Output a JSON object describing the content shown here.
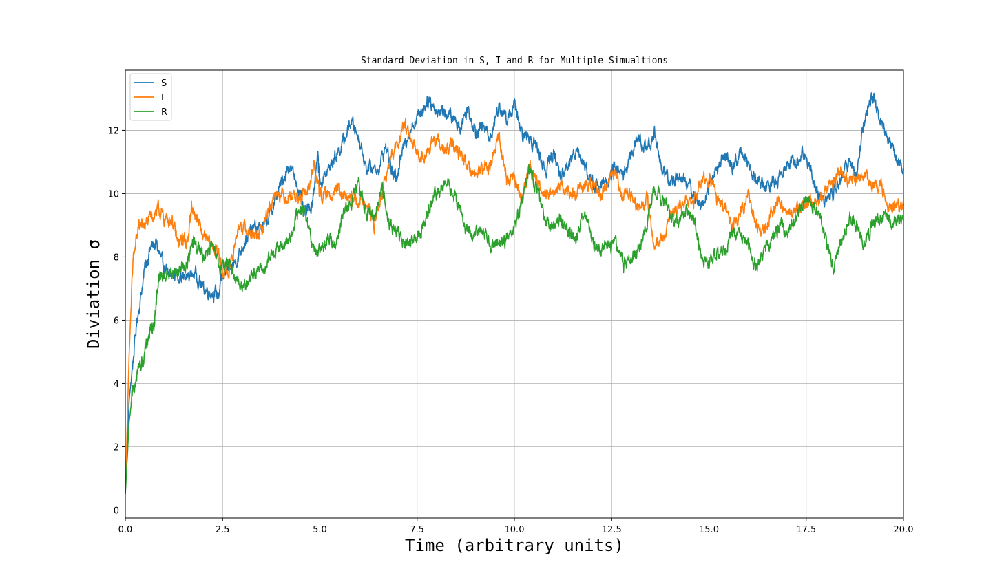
{
  "chart_data": {
    "type": "line",
    "title": "Standard Deviation in S, I and R for Multiple Simualtions",
    "xlabel": "Time (arbitrary units)",
    "ylabel": "Diviation σ",
    "xlim": [
      0,
      20
    ],
    "ylim": [
      -0.25,
      13.9
    ],
    "xticks": [
      0,
      2.5,
      5,
      7.5,
      10,
      12.5,
      15,
      17.5,
      20
    ],
    "xtick_labels": [
      "0.0",
      "2.5",
      "5.0",
      "7.5",
      "10.0",
      "12.5",
      "15.0",
      "17.5",
      "20.0"
    ],
    "yticks": [
      0,
      2,
      4,
      6,
      8,
      10,
      12
    ],
    "ytick_labels": [
      "0",
      "2",
      "4",
      "6",
      "8",
      "10",
      "12"
    ],
    "grid": true,
    "legend_position": "upper-left",
    "series": [
      {
        "name": "S",
        "color": "#1f77b4",
        "points": [
          [
            0,
            0.5
          ],
          [
            0.1,
            3.5
          ],
          [
            0.3,
            6
          ],
          [
            0.5,
            7.6
          ],
          [
            0.65,
            8.3
          ],
          [
            0.8,
            8.4
          ],
          [
            0.95,
            7.8
          ],
          [
            1.1,
            7.4
          ],
          [
            1.3,
            7.5
          ],
          [
            1.5,
            7.3
          ],
          [
            1.8,
            7.5
          ],
          [
            2.0,
            7.0
          ],
          [
            2.2,
            6.9
          ],
          [
            2.4,
            6.8
          ],
          [
            2.5,
            7.5
          ],
          [
            2.7,
            7.6
          ],
          [
            2.9,
            8.0
          ],
          [
            3.1,
            8.6
          ],
          [
            3.3,
            8.9
          ],
          [
            3.6,
            9.0
          ],
          [
            3.8,
            9.6
          ],
          [
            4.0,
            10.3
          ],
          [
            4.2,
            10.9
          ],
          [
            4.4,
            10.4
          ],
          [
            4.6,
            9.3
          ],
          [
            4.8,
            9.7
          ],
          [
            4.95,
            11.2
          ],
          [
            5.0,
            10.3
          ],
          [
            5.2,
            10.7
          ],
          [
            5.4,
            11.2
          ],
          [
            5.6,
            11.6
          ],
          [
            5.8,
            12.3
          ],
          [
            6.0,
            11.8
          ],
          [
            6.2,
            10.8
          ],
          [
            6.5,
            10.8
          ],
          [
            6.7,
            11.5
          ],
          [
            6.9,
            10.5
          ],
          [
            7.0,
            10.7
          ],
          [
            7.2,
            11.7
          ],
          [
            7.4,
            12.2
          ],
          [
            7.6,
            12.6
          ],
          [
            7.8,
            13.0
          ],
          [
            8.0,
            12.6
          ],
          [
            8.2,
            12.6
          ],
          [
            8.4,
            12.4
          ],
          [
            8.6,
            12.1
          ],
          [
            8.8,
            12.7
          ],
          [
            9.0,
            12.0
          ],
          [
            9.2,
            12.1
          ],
          [
            9.4,
            11.8
          ],
          [
            9.6,
            12.8
          ],
          [
            9.8,
            12.3
          ],
          [
            10.0,
            12.8
          ],
          [
            10.2,
            11.8
          ],
          [
            10.4,
            11.8
          ],
          [
            10.6,
            11.4
          ],
          [
            10.8,
            10.7
          ],
          [
            11.0,
            11.3
          ],
          [
            11.2,
            10.5
          ],
          [
            11.4,
            10.9
          ],
          [
            11.6,
            11.5
          ],
          [
            11.8,
            10.9
          ],
          [
            12.0,
            10.3
          ],
          [
            12.2,
            10.3
          ],
          [
            12.4,
            10.3
          ],
          [
            12.6,
            10.9
          ],
          [
            12.8,
            10.5
          ],
          [
            13.0,
            11.3
          ],
          [
            13.2,
            11.7
          ],
          [
            13.4,
            11.4
          ],
          [
            13.6,
            11.9
          ],
          [
            13.8,
            10.8
          ],
          [
            14.0,
            10.3
          ],
          [
            14.2,
            10.6
          ],
          [
            14.4,
            10.4
          ],
          [
            14.6,
            10.0
          ],
          [
            14.8,
            9.6
          ],
          [
            15.0,
            10.2
          ],
          [
            15.2,
            10.8
          ],
          [
            15.4,
            11.2
          ],
          [
            15.6,
            10.8
          ],
          [
            15.8,
            11.3
          ],
          [
            16.0,
            11.0
          ],
          [
            16.2,
            10.5
          ],
          [
            16.4,
            10.2
          ],
          [
            16.6,
            10.3
          ],
          [
            16.8,
            10.5
          ],
          [
            17.0,
            11.0
          ],
          [
            17.2,
            10.9
          ],
          [
            17.4,
            11.4
          ],
          [
            17.6,
            10.8
          ],
          [
            17.8,
            10.0
          ],
          [
            18.0,
            9.8
          ],
          [
            18.2,
            10.0
          ],
          [
            18.4,
            10.5
          ],
          [
            18.6,
            11.0
          ],
          [
            18.8,
            10.6
          ],
          [
            19.0,
            12.3
          ],
          [
            19.2,
            13.1
          ],
          [
            19.4,
            12.3
          ],
          [
            19.6,
            11.8
          ],
          [
            19.8,
            11.2
          ],
          [
            20.0,
            10.8
          ]
        ]
      },
      {
        "name": "I",
        "color": "#ff7f0e",
        "points": [
          [
            0,
            0.5
          ],
          [
            0.1,
            5.0
          ],
          [
            0.2,
            8.0
          ],
          [
            0.35,
            9.0
          ],
          [
            0.5,
            9.0
          ],
          [
            0.7,
            9.3
          ],
          [
            0.85,
            9.5
          ],
          [
            1.0,
            9.2
          ],
          [
            1.2,
            9.2
          ],
          [
            1.35,
            8.4
          ],
          [
            1.5,
            8.6
          ],
          [
            1.6,
            8.4
          ],
          [
            1.7,
            9.6
          ],
          [
            1.85,
            9.2
          ],
          [
            2.0,
            8.6
          ],
          [
            2.2,
            8.4
          ],
          [
            2.4,
            8.1
          ],
          [
            2.5,
            7.5
          ],
          [
            2.7,
            7.6
          ],
          [
            2.9,
            9.0
          ],
          [
            3.1,
            8.9
          ],
          [
            3.3,
            8.6
          ],
          [
            3.5,
            8.8
          ],
          [
            3.7,
            9.6
          ],
          [
            3.9,
            10.1
          ],
          [
            4.1,
            9.9
          ],
          [
            4.3,
            10.0
          ],
          [
            4.5,
            9.8
          ],
          [
            4.7,
            10.1
          ],
          [
            4.85,
            10.9
          ],
          [
            5.0,
            10.0
          ],
          [
            5.2,
            9.9
          ],
          [
            5.4,
            10.2
          ],
          [
            5.6,
            9.9
          ],
          [
            5.8,
            9.8
          ],
          [
            6.0,
            9.8
          ],
          [
            6.2,
            9.8
          ],
          [
            6.4,
            9.0
          ],
          [
            6.6,
            10.0
          ],
          [
            6.8,
            11.0
          ],
          [
            7.0,
            11.6
          ],
          [
            7.2,
            12.2
          ],
          [
            7.4,
            11.4
          ],
          [
            7.6,
            11.2
          ],
          [
            7.8,
            11.4
          ],
          [
            8.0,
            11.7
          ],
          [
            8.2,
            11.3
          ],
          [
            8.4,
            11.5
          ],
          [
            8.6,
            11.3
          ],
          [
            8.8,
            10.9
          ],
          [
            9.0,
            10.6
          ],
          [
            9.2,
            10.8
          ],
          [
            9.4,
            10.9
          ],
          [
            9.6,
            11.9
          ],
          [
            9.8,
            10.4
          ],
          [
            10.0,
            10.5
          ],
          [
            10.2,
            9.8
          ],
          [
            10.4,
            10.9
          ],
          [
            10.6,
            10.3
          ],
          [
            10.8,
            10.1
          ],
          [
            11.0,
            10.0
          ],
          [
            11.2,
            10.3
          ],
          [
            11.4,
            10.0
          ],
          [
            11.6,
            10.0
          ],
          [
            11.8,
            10.2
          ],
          [
            12.0,
            10.3
          ],
          [
            12.2,
            10.0
          ],
          [
            12.4,
            10.3
          ],
          [
            12.6,
            10.8
          ],
          [
            12.8,
            9.8
          ],
          [
            13.0,
            10.0
          ],
          [
            13.2,
            9.5
          ],
          [
            13.4,
            9.8
          ],
          [
            13.6,
            8.3
          ],
          [
            13.8,
            8.6
          ],
          [
            14.0,
            9.2
          ],
          [
            14.2,
            9.6
          ],
          [
            14.4,
            9.8
          ],
          [
            14.6,
            9.6
          ],
          [
            14.8,
            10.5
          ],
          [
            15.0,
            10.5
          ],
          [
            15.2,
            9.8
          ],
          [
            15.4,
            9.7
          ],
          [
            15.6,
            9.0
          ],
          [
            15.8,
            9.4
          ],
          [
            16.0,
            10.0
          ],
          [
            16.2,
            9.0
          ],
          [
            16.4,
            8.8
          ],
          [
            16.6,
            9.3
          ],
          [
            16.8,
            9.9
          ],
          [
            17.0,
            9.3
          ],
          [
            17.2,
            9.5
          ],
          [
            17.4,
            9.6
          ],
          [
            17.6,
            9.8
          ],
          [
            17.8,
            9.6
          ],
          [
            18.0,
            10.2
          ],
          [
            18.2,
            10.4
          ],
          [
            18.4,
            10.8
          ],
          [
            18.6,
            10.4
          ],
          [
            18.8,
            10.4
          ],
          [
            19.0,
            10.7
          ],
          [
            19.2,
            10.2
          ],
          [
            19.4,
            10.3
          ],
          [
            19.6,
            9.7
          ],
          [
            19.8,
            9.6
          ],
          [
            20.0,
            9.6
          ]
        ]
      },
      {
        "name": "R",
        "color": "#2ca02c",
        "points": [
          [
            0,
            0.5
          ],
          [
            0.1,
            2.8
          ],
          [
            0.2,
            3.8
          ],
          [
            0.3,
            4.4
          ],
          [
            0.45,
            4.7
          ],
          [
            0.6,
            5.5
          ],
          [
            0.75,
            6.0
          ],
          [
            0.85,
            7.3
          ],
          [
            1.0,
            7.4
          ],
          [
            1.2,
            7.5
          ],
          [
            1.4,
            7.6
          ],
          [
            1.6,
            7.8
          ],
          [
            1.75,
            8.5
          ],
          [
            1.9,
            8.2
          ],
          [
            2.0,
            8.0
          ],
          [
            2.2,
            8.4
          ],
          [
            2.4,
            7.7
          ],
          [
            2.6,
            7.8
          ],
          [
            2.8,
            7.5
          ],
          [
            3.0,
            7.0
          ],
          [
            3.2,
            7.4
          ],
          [
            3.4,
            7.6
          ],
          [
            3.6,
            7.6
          ],
          [
            3.8,
            8.2
          ],
          [
            4.0,
            8.3
          ],
          [
            4.2,
            8.5
          ],
          [
            4.4,
            9.3
          ],
          [
            4.6,
            9.5
          ],
          [
            4.8,
            8.3
          ],
          [
            5.0,
            8.1
          ],
          [
            5.2,
            8.6
          ],
          [
            5.4,
            8.4
          ],
          [
            5.6,
            9.4
          ],
          [
            5.8,
            9.7
          ],
          [
            6.0,
            10.3
          ],
          [
            6.2,
            9.4
          ],
          [
            6.4,
            9.3
          ],
          [
            6.6,
            10.2
          ],
          [
            6.8,
            9.0
          ],
          [
            7.0,
            8.8
          ],
          [
            7.2,
            8.3
          ],
          [
            7.4,
            8.5
          ],
          [
            7.6,
            8.8
          ],
          [
            7.8,
            9.5
          ],
          [
            8.0,
            10.0
          ],
          [
            8.2,
            10.3
          ],
          [
            8.4,
            10.1
          ],
          [
            8.6,
            9.5
          ],
          [
            8.8,
            8.7
          ],
          [
            9.0,
            8.7
          ],
          [
            9.2,
            8.9
          ],
          [
            9.4,
            8.4
          ],
          [
            9.6,
            8.5
          ],
          [
            9.8,
            8.5
          ],
          [
            10.0,
            9.0
          ],
          [
            10.2,
            9.8
          ],
          [
            10.4,
            10.8
          ],
          [
            10.6,
            10.0
          ],
          [
            10.8,
            9.1
          ],
          [
            11.0,
            9.0
          ],
          [
            11.2,
            9.2
          ],
          [
            11.4,
            8.8
          ],
          [
            11.6,
            8.6
          ],
          [
            11.8,
            9.5
          ],
          [
            12.0,
            8.4
          ],
          [
            12.2,
            8.2
          ],
          [
            12.4,
            8.3
          ],
          [
            12.6,
            8.5
          ],
          [
            12.8,
            7.8
          ],
          [
            13.0,
            8.0
          ],
          [
            13.2,
            8.3
          ],
          [
            13.4,
            9.0
          ],
          [
            13.6,
            10.2
          ],
          [
            13.8,
            9.9
          ],
          [
            14.0,
            9.3
          ],
          [
            14.2,
            9.0
          ],
          [
            14.4,
            9.5
          ],
          [
            14.6,
            9.3
          ],
          [
            14.8,
            8.0
          ],
          [
            15.0,
            7.8
          ],
          [
            15.2,
            8.1
          ],
          [
            15.4,
            8.2
          ],
          [
            15.6,
            8.8
          ],
          [
            15.8,
            8.6
          ],
          [
            16.0,
            8.3
          ],
          [
            16.2,
            7.7
          ],
          [
            16.4,
            8.2
          ],
          [
            16.6,
            8.4
          ],
          [
            16.8,
            9.0
          ],
          [
            17.0,
            8.8
          ],
          [
            17.2,
            9.1
          ],
          [
            17.4,
            9.6
          ],
          [
            17.6,
            9.8
          ],
          [
            17.8,
            9.4
          ],
          [
            18.0,
            8.6
          ],
          [
            18.2,
            7.6
          ],
          [
            18.4,
            8.4
          ],
          [
            18.6,
            9.2
          ],
          [
            18.8,
            9.0
          ],
          [
            19.0,
            8.5
          ],
          [
            19.2,
            9.0
          ],
          [
            19.4,
            9.3
          ],
          [
            19.6,
            9.2
          ],
          [
            19.8,
            9.1
          ],
          [
            20.0,
            9.2
          ]
        ]
      }
    ]
  }
}
